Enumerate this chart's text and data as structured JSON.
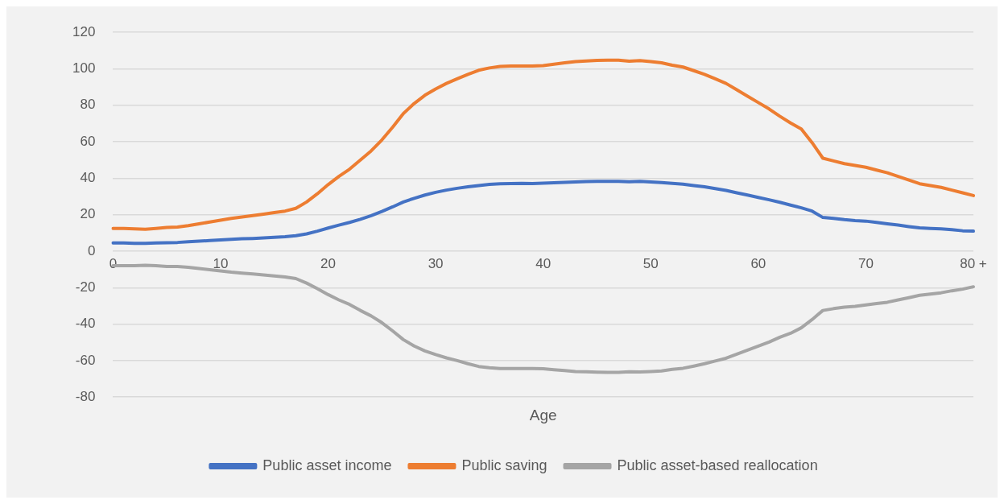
{
  "chart_data": {
    "type": "line",
    "xlabel": "Age",
    "categories": [
      "0",
      null,
      null,
      null,
      null,
      null,
      null,
      null,
      null,
      null,
      "10",
      null,
      null,
      null,
      null,
      null,
      null,
      null,
      null,
      null,
      "20",
      null,
      null,
      null,
      null,
      null,
      null,
      null,
      null,
      null,
      "30",
      null,
      null,
      null,
      null,
      null,
      null,
      null,
      null,
      null,
      "40",
      null,
      null,
      null,
      null,
      null,
      null,
      null,
      null,
      null,
      "50",
      null,
      null,
      null,
      null,
      null,
      null,
      null,
      null,
      null,
      "60",
      null,
      null,
      null,
      null,
      null,
      null,
      null,
      null,
      null,
      "70",
      null,
      null,
      null,
      null,
      null,
      null,
      null,
      null,
      null,
      "80 +"
    ],
    "series": [
      {
        "name": "Public asset income",
        "color": "#4472c4",
        "values": [
          4.5,
          4.5,
          4.3,
          4.3,
          4.5,
          4.6,
          4.8,
          5.2,
          5.5,
          5.8,
          6.2,
          6.5,
          6.8,
          7,
          7.3,
          7.6,
          7.9,
          8.5,
          9.5,
          11,
          12.7,
          14.3,
          15.8,
          17.5,
          19.5,
          21.8,
          24.3,
          27,
          29,
          30.8,
          32.3,
          33.5,
          34.5,
          35.3,
          36,
          36.6,
          37,
          37.1,
          37.2,
          37.1,
          37.3,
          37.5,
          37.8,
          38,
          38.2,
          38.3,
          38.3,
          38.3,
          38.1,
          38.3,
          38,
          37.6,
          37.2,
          36.8,
          36,
          35.3,
          34.3,
          33.3,
          32,
          30.8,
          29.5,
          28.2,
          26.8,
          25.3,
          23.8,
          22,
          18.5,
          18,
          17.3,
          16.8,
          16.5,
          15.8,
          15,
          14.3,
          13.5,
          12.8,
          12.5,
          12.2,
          11.8,
          11.2,
          11
        ]
      },
      {
        "name": "Public saving",
        "color": "#ed7d31",
        "values": [
          12.5,
          12.5,
          12.2,
          12,
          12.5,
          13,
          13.2,
          14,
          15,
          16,
          17,
          18,
          18.8,
          19.5,
          20.3,
          21.2,
          22,
          23.5,
          27,
          31.5,
          36.5,
          41,
          45,
          50,
          55,
          61,
          68,
          75.5,
          81,
          85.5,
          89,
          92,
          94.5,
          97,
          99.2,
          100.5,
          101.3,
          101.5,
          101.5,
          101.5,
          101.8,
          102.5,
          103.3,
          104,
          104.3,
          104.6,
          104.7,
          104.7,
          104.2,
          104.5,
          104,
          103.3,
          102,
          101,
          99,
          97,
          94.5,
          92,
          88.5,
          85,
          81.5,
          78,
          74,
          70.3,
          67,
          59.5,
          51,
          49.5,
          48,
          47,
          46,
          44.5,
          43,
          41,
          39,
          37,
          36,
          35,
          33.5,
          32,
          30.5
        ]
      },
      {
        "name": "Public asset-based reallocation",
        "color": "#a5a5a5",
        "values": [
          -8,
          -8,
          -7.9,
          -7.7,
          -8,
          -8.4,
          -8.4,
          -8.8,
          -9.5,
          -10.2,
          -10.8,
          -11.5,
          -12,
          -12.5,
          -13,
          -13.6,
          -14.1,
          -15,
          -17.5,
          -20.5,
          -23.8,
          -26.7,
          -29.2,
          -32.5,
          -35.5,
          -39.2,
          -43.7,
          -48.5,
          -52,
          -54.7,
          -56.7,
          -58.5,
          -60,
          -61.7,
          -63.2,
          -63.9,
          -64.3,
          -64.4,
          -64.3,
          -64.4,
          -64.5,
          -65,
          -65.5,
          -66,
          -66.1,
          -66.3,
          -66.4,
          -66.4,
          -66.1,
          -66.2,
          -66,
          -65.7,
          -64.8,
          -64.2,
          -63,
          -61.7,
          -60.2,
          -58.7,
          -56.5,
          -54.2,
          -52,
          -49.8,
          -47.2,
          -45,
          -42,
          -37.5,
          -32.5,
          -31.5,
          -30.7,
          -30.2,
          -29.5,
          -28.7,
          -28,
          -26.7,
          -25.5,
          -24.2,
          -23.5,
          -22.8,
          -21.7,
          -20.8,
          -19.5
        ]
      }
    ],
    "ylim": [
      -80,
      120
    ],
    "yticks": [
      -80,
      -60,
      -40,
      -20,
      0,
      20,
      40,
      60,
      80,
      100,
      120
    ],
    "grid": "y",
    "legend": "bottom",
    "marker": "none",
    "line_style": "solid"
  }
}
